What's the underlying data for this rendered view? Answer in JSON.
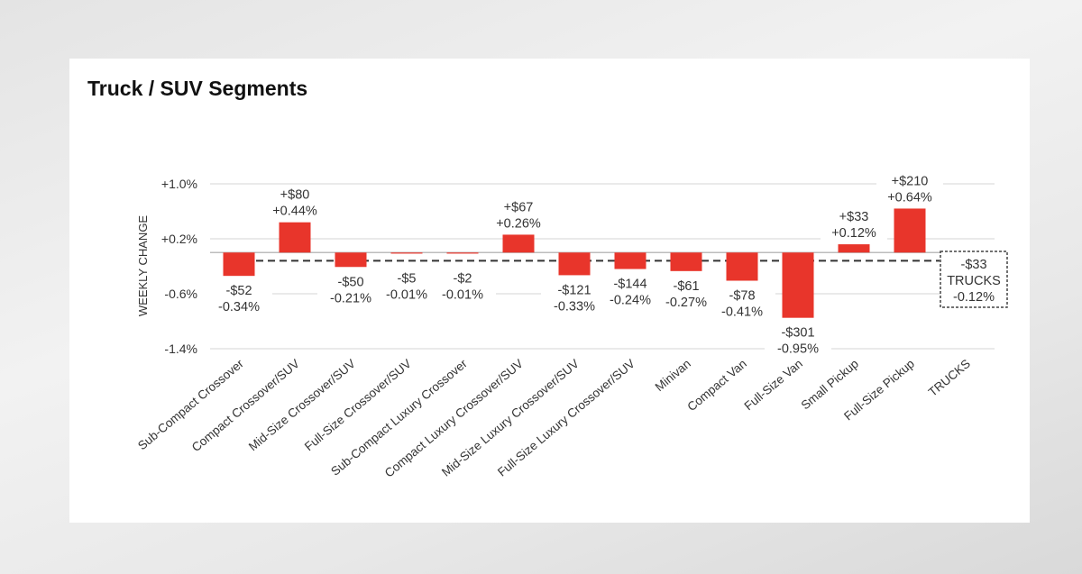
{
  "title": "Truck / SUV Segments",
  "chart_data": {
    "type": "bar",
    "title": "Truck / SUV Segments",
    "ylabel": "WEEKLY CHANGE",
    "xlabel": "",
    "ylim": [
      -1.4,
      1.0
    ],
    "yticks": [
      "+1.0%",
      "+0.2%",
      "-0.6%",
      "-1.4%"
    ],
    "ytick_values": [
      1.0,
      0.2,
      -0.6,
      -1.4
    ],
    "grid": true,
    "bar_color": "#e8352b",
    "categories": [
      "Sub-Compact Crossover",
      "Compact Crossover/SUV",
      "Mid-Size Crossover/SUV",
      "Full-Size Crossover/SUV",
      "Sub-Compact Luxury Crossover",
      "Compact Luxury Crossover/SUV",
      "Mid-Size Luxury Crossover/SUV",
      "Full-Size Luxury Crossover/SUV",
      "Minivan",
      "Compact Van",
      "Full-Size Van",
      "Small Pickup",
      "Full-Size Pickup"
    ],
    "values_pct": [
      -0.34,
      0.44,
      -0.21,
      -0.01,
      -0.01,
      0.26,
      -0.33,
      -0.24,
      -0.27,
      -0.41,
      -0.95,
      0.12,
      0.64
    ],
    "labels_dollar": [
      "-$52",
      "+$80",
      "-$50",
      "-$5",
      "-$2",
      "+$67",
      "-$121",
      "-$144",
      "-$61",
      "-$78",
      "-$301",
      "+$33",
      "+$210"
    ],
    "labels_pct": [
      "-0.34%",
      "+0.44%",
      "-0.21%",
      "-0.01%",
      "-0.01%",
      "+0.26%",
      "-0.33%",
      "-0.24%",
      "-0.27%",
      "-0.41%",
      "-0.95%",
      "+0.12%",
      "+0.64%"
    ],
    "average": {
      "category": "TRUCKS",
      "value_pct": -0.12,
      "label_dollar": "-$33",
      "label_name": "TRUCKS",
      "label_pct": "-0.12%",
      "line_style": "dashed"
    }
  }
}
